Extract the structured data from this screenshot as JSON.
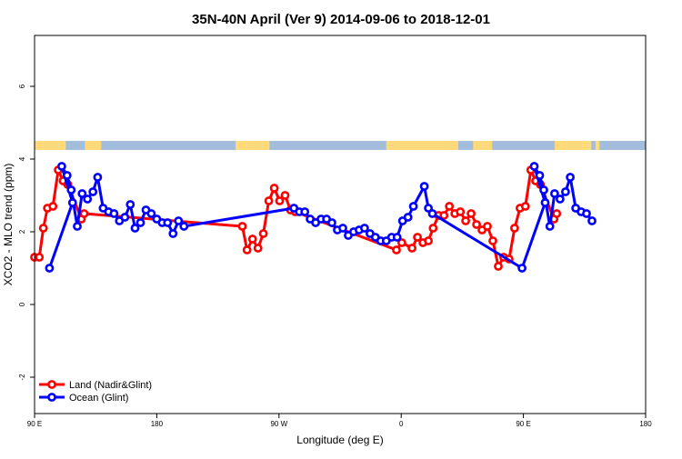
{
  "chart_data": {
    "type": "line",
    "title": "35N-40N April (Ver 9)   2014-09-06 to 2018-12-01",
    "xlabel": "Longitude (deg E)",
    "ylabel": "XCO2 - MLO trend (ppm)",
    "xlim": [
      90,
      540
    ],
    "ylim": [
      -3,
      7.4
    ],
    "x_ticks": [
      {
        "value": 90,
        "label": "90 E"
      },
      {
        "value": 180,
        "label": "180"
      },
      {
        "value": 270,
        "label": "90 W"
      },
      {
        "value": 360,
        "label": "0"
      },
      {
        "value": 450,
        "label": "90 E"
      },
      {
        "value": 540,
        "label": "180"
      }
    ],
    "y_ticks": [
      {
        "value": -2,
        "label": "-2"
      },
      {
        "value": 0,
        "label": "0"
      },
      {
        "value": 2,
        "label": "2"
      },
      {
        "value": 4,
        "label": "4"
      },
      {
        "value": 6,
        "label": "6"
      }
    ],
    "legend_position": "bottom-left",
    "land_ocean_strip": {
      "land_color": "#FFD97A",
      "ocean_color": "#A3BEDC",
      "land_ranges": [
        [
          90,
          113
        ],
        [
          127,
          139
        ],
        [
          238,
          263
        ],
        [
          349,
          402
        ],
        [
          413,
          427
        ],
        [
          473,
          500
        ],
        [
          503,
          506
        ]
      ]
    },
    "series": [
      {
        "name": "Land (Nadir&Glint)",
        "color": "#FF0000",
        "points": [
          [
            90,
            1.3
          ],
          [
            93.5,
            1.3
          ],
          [
            96.5,
            2.1
          ],
          [
            99.5,
            2.65
          ],
          [
            103.5,
            2.7
          ],
          [
            107.5,
            3.7
          ],
          [
            111,
            3.4
          ],
          [
            114.5,
            3.3
          ],
          [
            124.5,
            2.35
          ],
          [
            126.5,
            2.5
          ],
          [
            243,
            2.15
          ],
          [
            246.5,
            1.5
          ],
          [
            250.5,
            1.8
          ],
          [
            254.5,
            1.55
          ],
          [
            258.5,
            1.95
          ],
          [
            262.5,
            2.85
          ],
          [
            266.5,
            3.2
          ],
          [
            270.5,
            2.85
          ],
          [
            274.5,
            3.0
          ],
          [
            278.5,
            2.6
          ],
          [
            282,
            2.55
          ],
          [
            356.5,
            1.5
          ],
          [
            360.5,
            1.7
          ],
          [
            368,
            1.55
          ],
          [
            372,
            1.85
          ],
          [
            376,
            1.7
          ],
          [
            380,
            1.75
          ],
          [
            383.5,
            2.1
          ],
          [
            387.5,
            2.45
          ],
          [
            391.5,
            2.45
          ],
          [
            395.5,
            2.7
          ],
          [
            399.5,
            2.5
          ],
          [
            403.5,
            2.55
          ],
          [
            407.5,
            2.3
          ],
          [
            411.5,
            2.5
          ],
          [
            415.5,
            2.2
          ],
          [
            419.5,
            2.05
          ],
          [
            423.5,
            2.15
          ],
          [
            427.5,
            1.75
          ],
          [
            431.5,
            1.05
          ],
          [
            435.5,
            1.3
          ],
          [
            439.5,
            1.25
          ],
          [
            443.5,
            2.1
          ],
          [
            447.5,
            2.65
          ],
          [
            451.5,
            2.7
          ],
          [
            455.5,
            3.7
          ],
          [
            459,
            3.4
          ],
          [
            462.5,
            3.3
          ],
          [
            472.5,
            2.35
          ],
          [
            474.5,
            2.5
          ]
        ]
      },
      {
        "name": "Ocean (Glint)",
        "color": "#0000FF",
        "points": [
          [
            101,
            1.0
          ],
          [
            118,
            2.8
          ],
          [
            110,
            3.8
          ],
          [
            114,
            3.55
          ],
          [
            117,
            3.15
          ],
          [
            121.5,
            2.15
          ],
          [
            125,
            3.05
          ],
          [
            129,
            2.9
          ],
          [
            133,
            3.1
          ],
          [
            136.5,
            3.5
          ],
          [
            140.5,
            2.65
          ],
          [
            144.5,
            2.55
          ],
          [
            148.5,
            2.5
          ],
          [
            152.5,
            2.3
          ],
          [
            156.5,
            2.4
          ],
          [
            160.5,
            2.75
          ],
          [
            164,
            2.1
          ],
          [
            168,
            2.25
          ],
          [
            172,
            2.6
          ],
          [
            176,
            2.5
          ],
          [
            180,
            2.35
          ],
          [
            184,
            2.25
          ],
          [
            188,
            2.25
          ],
          [
            192,
            1.95
          ],
          [
            196,
            2.3
          ],
          [
            200,
            2.15
          ],
          [
            281,
            2.65
          ],
          [
            285,
            2.55
          ],
          [
            289,
            2.55
          ],
          [
            293,
            2.35
          ],
          [
            297,
            2.25
          ],
          [
            301,
            2.35
          ],
          [
            305,
            2.35
          ],
          [
            309,
            2.25
          ],
          [
            313,
            2.05
          ],
          [
            317,
            2.1
          ],
          [
            321,
            1.9
          ],
          [
            325,
            2.0
          ],
          [
            329,
            2.05
          ],
          [
            333,
            2.1
          ],
          [
            337,
            1.95
          ],
          [
            341,
            1.85
          ],
          [
            345,
            1.75
          ],
          [
            349,
            1.75
          ],
          [
            353,
            1.85
          ],
          [
            357,
            1.85
          ],
          [
            361,
            2.3
          ],
          [
            365,
            2.4
          ],
          [
            369,
            2.7
          ],
          [
            377,
            3.25
          ],
          [
            380,
            2.65
          ],
          [
            383,
            2.5
          ],
          [
            449,
            1.0
          ],
          [
            466,
            2.8
          ],
          [
            458,
            3.8
          ],
          [
            462,
            3.55
          ],
          [
            465,
            3.15
          ],
          [
            469.5,
            2.15
          ],
          [
            473,
            3.05
          ],
          [
            477,
            2.9
          ],
          [
            481,
            3.1
          ],
          [
            484.5,
            3.5
          ],
          [
            488.5,
            2.65
          ],
          [
            492.5,
            2.55
          ],
          [
            496.5,
            2.5
          ],
          [
            500.5,
            2.3
          ]
        ]
      }
    ]
  }
}
